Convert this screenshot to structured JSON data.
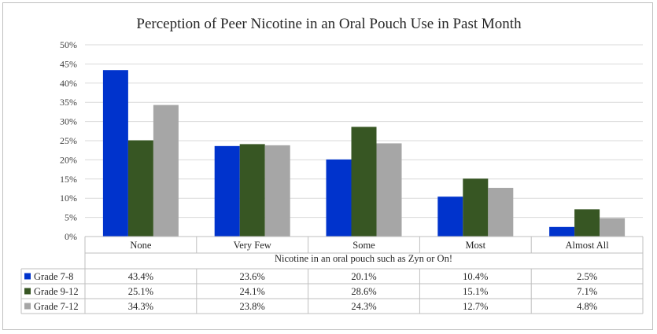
{
  "chart_data": {
    "type": "bar",
    "title": "Perception of Peer Nicotine in an Oral Pouch Use in Past Month",
    "xlabel": "Nicotine in an oral pouch such as Zyn or On!",
    "ylabel": "",
    "ylim": [
      0,
      50
    ],
    "yticks": [
      "0%",
      "5%",
      "10%",
      "15%",
      "20%",
      "25%",
      "30%",
      "35%",
      "40%",
      "45%",
      "50%"
    ],
    "grid": true,
    "legend_placement": "data-table",
    "categories": [
      "None",
      "Very Few",
      "Some",
      "Most",
      "Almost All"
    ],
    "series": [
      {
        "name": "Grade  7-8",
        "color": "#0033cc",
        "values": [
          43.4,
          23.6,
          20.1,
          10.4,
          2.5
        ],
        "labels": [
          "43.4%",
          "23.6%",
          "20.1%",
          "10.4%",
          "2.5%"
        ]
      },
      {
        "name": "Grade  9-12",
        "color": "#375623",
        "values": [
          25.1,
          24.1,
          28.6,
          15.1,
          7.1
        ],
        "labels": [
          "25.1%",
          "24.1%",
          "28.6%",
          "15.1%",
          "7.1%"
        ]
      },
      {
        "name": "Grade  7-12",
        "color": "#a6a6a6",
        "values": [
          34.3,
          23.8,
          24.3,
          12.7,
          4.8
        ],
        "labels": [
          "34.3%",
          "23.8%",
          "24.3%",
          "12.7%",
          "4.8%"
        ]
      }
    ]
  }
}
